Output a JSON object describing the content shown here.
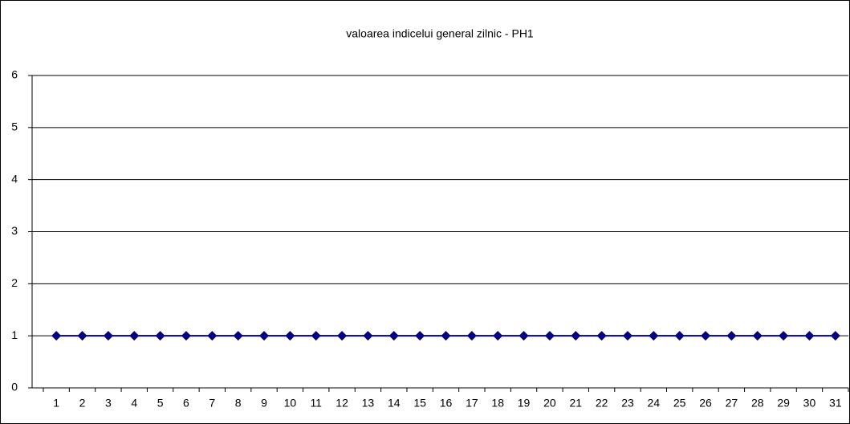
{
  "chart_data": {
    "type": "line",
    "title": "valoarea indicelui general zilnic - PH1",
    "categories": [
      "1",
      "2",
      "3",
      "4",
      "5",
      "6",
      "7",
      "8",
      "9",
      "10",
      "11",
      "12",
      "13",
      "14",
      "15",
      "16",
      "17",
      "18",
      "19",
      "20",
      "21",
      "22",
      "23",
      "24",
      "25",
      "26",
      "27",
      "28",
      "29",
      "30",
      "31"
    ],
    "series": [
      {
        "color": "#000080",
        "values": [
          1,
          1,
          1,
          1,
          1,
          1,
          1,
          1,
          1,
          1,
          1,
          1,
          1,
          1,
          1,
          1,
          1,
          1,
          1,
          1,
          1,
          1,
          1,
          1,
          1,
          1,
          1,
          1,
          1,
          1,
          1
        ]
      }
    ],
    "ylim": [
      0,
      6
    ],
    "yticks": [
      0,
      1,
      2,
      3,
      4,
      5,
      6
    ],
    "grid": true
  }
}
